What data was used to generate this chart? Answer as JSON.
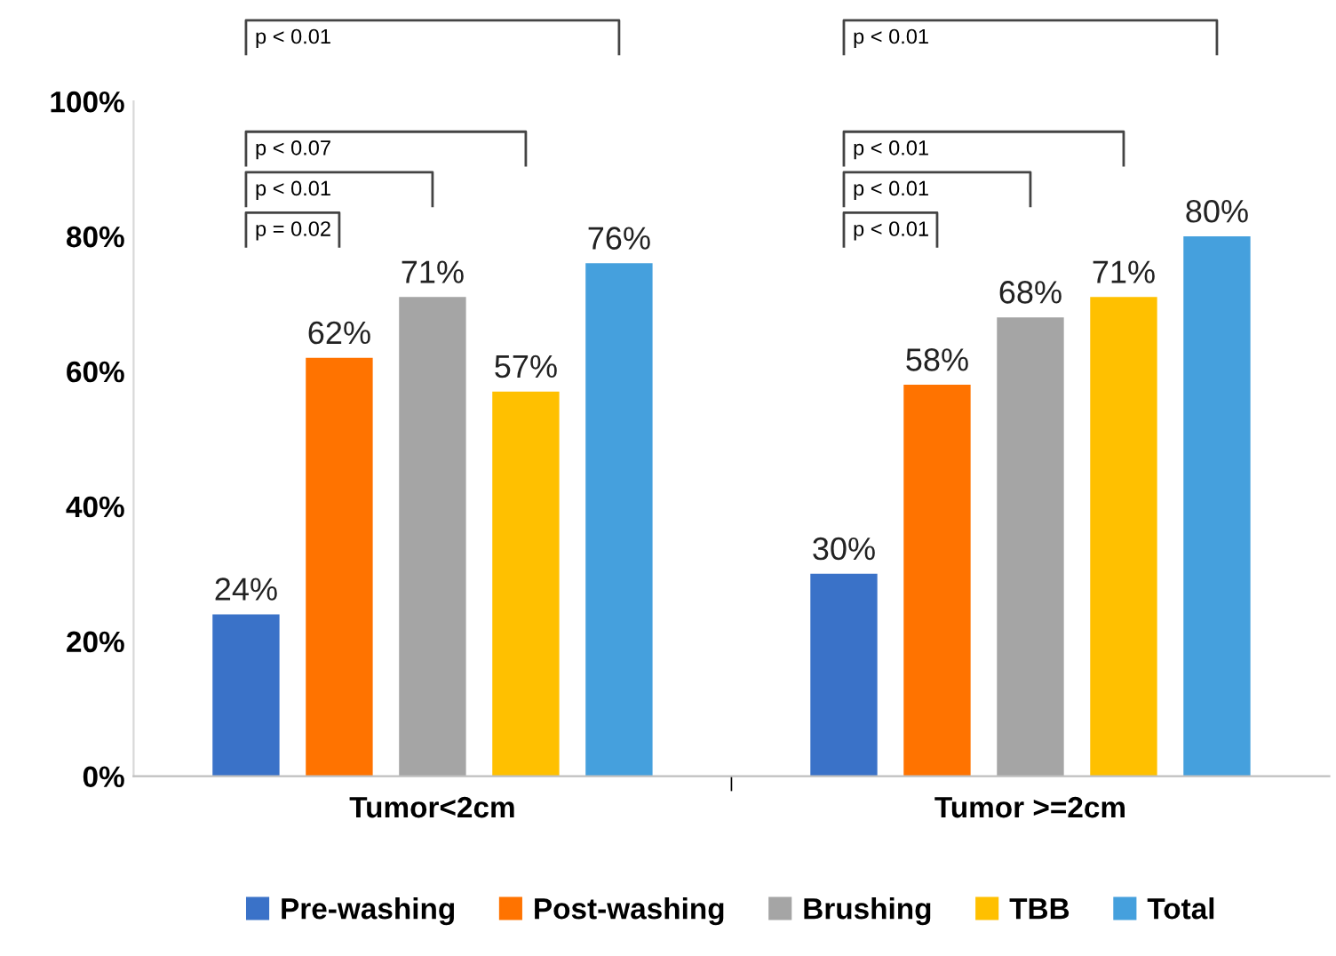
{
  "chart_data": {
    "type": "bar",
    "categories": [
      "Tumor<2cm",
      "Tumor >=2cm"
    ],
    "series": [
      {
        "name": "Pre-washing",
        "color": "#3a72c8",
        "values": [
          24,
          30
        ]
      },
      {
        "name": "Post-washing",
        "color": "#ff7300",
        "values": [
          62,
          58
        ]
      },
      {
        "name": "Brushing",
        "color": "#a5a5a5",
        "values": [
          71,
          68
        ]
      },
      {
        "name": "TBB",
        "color": "#ffc000",
        "values": [
          57,
          71
        ]
      },
      {
        "name": "Total",
        "color": "#45a0dd",
        "values": [
          76,
          80
        ]
      }
    ],
    "ylim": [
      0,
      100
    ],
    "yticks": [
      {
        "value": 0,
        "label": "0%"
      },
      {
        "value": 20,
        "label": "20%"
      },
      {
        "value": 40,
        "label": "40%"
      },
      {
        "value": 60,
        "label": "60%"
      },
      {
        "value": 80,
        "label": "80%"
      },
      {
        "value": 100,
        "label": "100%"
      }
    ],
    "value_labels": [
      [
        "24%",
        "30%"
      ],
      [
        "62%",
        "58%"
      ],
      [
        "71%",
        "68%"
      ],
      [
        "57%",
        "71%"
      ],
      [
        "76%",
        "80%"
      ]
    ],
    "annotations": [
      "p = 0.02",
      "p < 0.01",
      "p < 0.07",
      "p < 0.01",
      "p < 0.01",
      "p < 0.01",
      "p < 0.01",
      "p < 0.01"
    ],
    "grid": false,
    "legend": "bottom"
  }
}
